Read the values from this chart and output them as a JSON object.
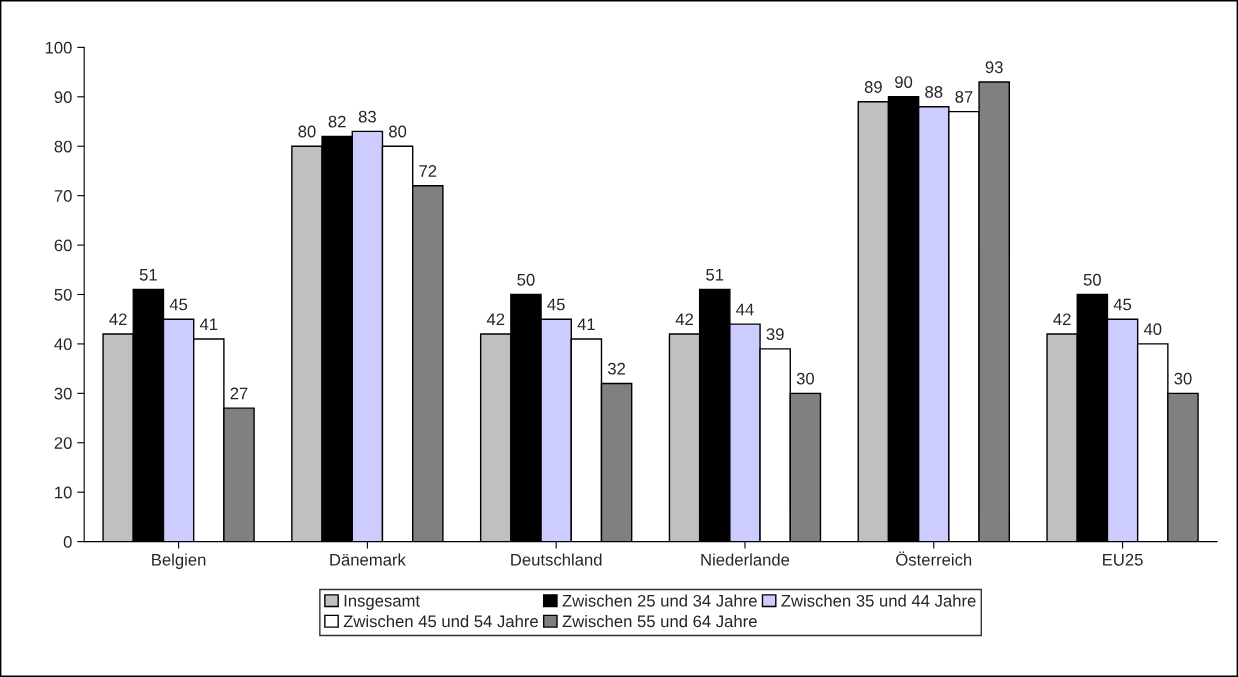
{
  "chart_data": {
    "type": "bar",
    "categories": [
      "Belgien",
      "Dänemark",
      "Deutschland",
      "Niederlande",
      "Österreich",
      "EU25"
    ],
    "series": [
      {
        "name": "Insgesamt",
        "color": "#c0c0c0",
        "values": [
          42,
          80,
          42,
          42,
          89,
          42
        ]
      },
      {
        "name": "Zwischen 25 und 34 Jahre",
        "color": "#000000",
        "values": [
          51,
          82,
          50,
          51,
          90,
          50
        ]
      },
      {
        "name": "Zwischen 35 und 44 Jahre",
        "color": "#ccccff",
        "values": [
          45,
          83,
          45,
          44,
          88,
          45
        ]
      },
      {
        "name": "Zwischen 45 und 54 Jahre",
        "color": "#ffffff",
        "values": [
          41,
          80,
          41,
          39,
          87,
          40
        ]
      },
      {
        "name": "Zwischen 55 und 64 Jahre",
        "color": "#808080",
        "values": [
          27,
          72,
          32,
          30,
          93,
          30
        ]
      }
    ],
    "ylim": [
      0,
      100
    ],
    "yticks": [
      0,
      10,
      20,
      30,
      40,
      50,
      60,
      70,
      80,
      90,
      100
    ],
    "data_labels": true,
    "legend": "bottom",
    "grid": false
  }
}
